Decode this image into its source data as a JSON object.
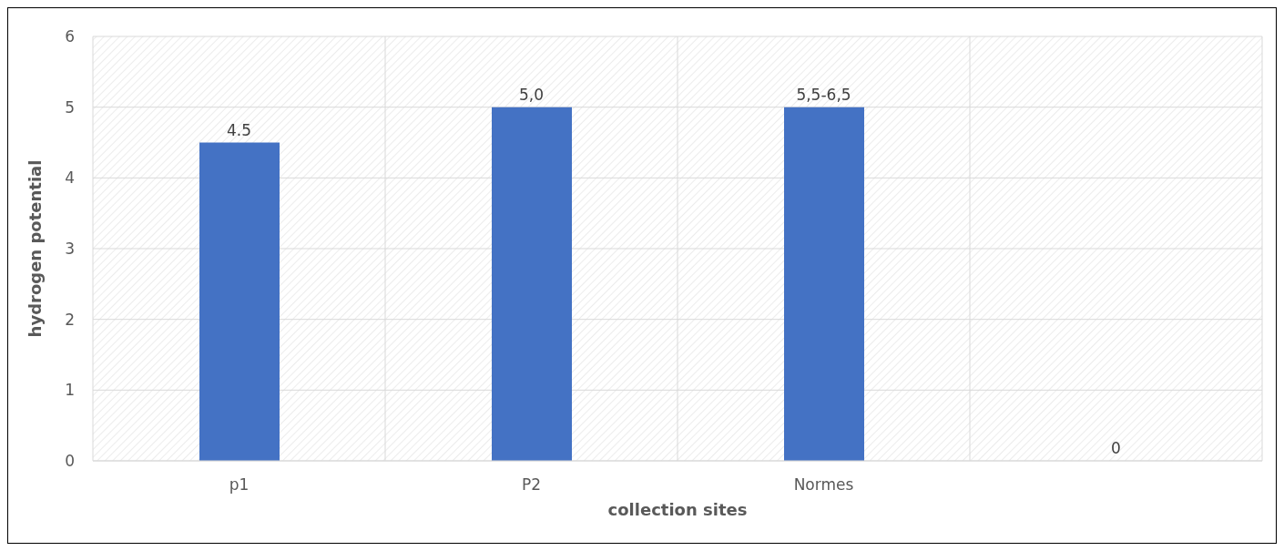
{
  "chart_data": {
    "type": "bar",
    "xlabel": "collection sites",
    "ylabel": "hydrogen potential",
    "categories": [
      "p1",
      "P2",
      "Normes",
      null
    ],
    "values": [
      4.5,
      5,
      5,
      0
    ],
    "value_labels": [
      "4.5",
      "5,0",
      "5,5-6,5",
      "0"
    ],
    "color": "#4472c4",
    "ylim": [
      0,
      6
    ],
    "yticks": [
      0,
      1,
      2,
      3,
      4,
      5,
      6
    ],
    "grid": true
  }
}
